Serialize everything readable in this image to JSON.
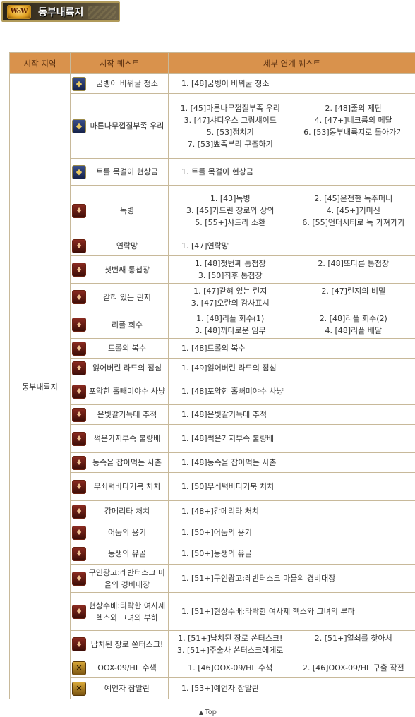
{
  "header": {
    "logo_text": "WoW",
    "title": "동부내륙지"
  },
  "table": {
    "headers": [
      "시작 지역",
      "시작 퀘스트",
      "세부 연계 퀘스트"
    ],
    "region": "동부내륙지",
    "rows": [
      {
        "start": "굼벵이 바위굴 청소",
        "icon": "alliance",
        "height": 28,
        "single": true,
        "details": [
          "1. [48]굼벵이 바위굴 청소"
        ]
      },
      {
        "start": "마른나무껍질부족 우리",
        "icon": "alliance",
        "height": 92,
        "single": false,
        "details": [
          "1. [45]마른나무껍질부족 우리",
          "2. [48]줄의 제단",
          "3. [47]샤디우스 그림섀이드",
          "4. [47+]네크룸의 메달",
          "5. [53]점치기",
          "6. [53]동부내륙지로 돌아가기",
          "7. [53]뾰족부리 구출하기",
          ""
        ]
      },
      {
        "start": "트롤 목걸이 현상금",
        "icon": "alliance",
        "height": 38,
        "single": true,
        "details": [
          "1. 트롤 목걸이 현상금"
        ]
      },
      {
        "start": "독병",
        "icon": "horde",
        "height": 72,
        "single": false,
        "details": [
          "1. [43]독병",
          "2. [45]온전한 독주머니",
          "3. [45]가드린 장로와 상의",
          "4. [45+]거미신",
          "5. [55+]샤드라 소환",
          "6. [55]언더시티로 독 가져가기"
        ]
      },
      {
        "start": "연락망",
        "icon": "horde",
        "height": 28,
        "single": true,
        "details": [
          "1. [47]연락망"
        ]
      },
      {
        "start": "첫번째 통첩장",
        "icon": "horde",
        "height": 36,
        "single": false,
        "details": [
          "1. [48]첫번째 통첩장",
          "2. [48]또다른 통첩장",
          "3. [50]최후 통첩장",
          ""
        ]
      },
      {
        "start": "갇혀 있는 린지",
        "icon": "horde",
        "height": 36,
        "single": false,
        "details": [
          "1. [47]갇혀 있는 린지",
          "2. [47]린지의 비밀",
          "3. [47]오란의 감사표시",
          ""
        ]
      },
      {
        "start": "리플 회수",
        "icon": "horde",
        "height": 36,
        "single": false,
        "details": [
          "1. [48]리플 회수(1)",
          "2. [48]리플 회수(2)",
          "3. [48]까다로운 임무",
          "4. [48]리플 배달"
        ]
      },
      {
        "start": "트롤의 복수",
        "icon": "horde",
        "height": 28,
        "single": true,
        "details": [
          "1. [48]트롤의 복수"
        ]
      },
      {
        "start": "잃어버린 라드의 점심",
        "icon": "horde",
        "height": 28,
        "single": true,
        "details": [
          "1. [49]잃어버린 라드의 점심"
        ]
      },
      {
        "start": "포악한 홀빼미야수 사냥",
        "icon": "horde",
        "height": 38,
        "single": true,
        "details": [
          "1. [48]포악한 홀빼미야수 사냥"
        ]
      },
      {
        "start": "은빛갈기늑대 추적",
        "icon": "horde",
        "height": 28,
        "single": true,
        "details": [
          "1. [48]은빛갈기늑대 추적"
        ]
      },
      {
        "start": "썩은가지부족 불량배",
        "icon": "horde",
        "height": 40,
        "single": true,
        "details": [
          "1. [48]썩은가지부족 불량배"
        ]
      },
      {
        "start": "동족을 잡아먹는 사촌",
        "icon": "horde",
        "height": 28,
        "single": true,
        "details": [
          "1. [48]동족을 잡아먹는 사촌"
        ]
      },
      {
        "start": "무쇠턱바다거북 처치",
        "icon": "horde",
        "height": 40,
        "single": true,
        "details": [
          "1. [50]무쇠턱바다거북 처치"
        ]
      },
      {
        "start": "감메리타 처치",
        "icon": "horde",
        "height": 30,
        "single": true,
        "details": [
          "1. [48+]감메리타 처치"
        ]
      },
      {
        "start": "어둠의 용기",
        "icon": "horde",
        "height": 30,
        "single": true,
        "details": [
          "1. [50+]어둠의 용기"
        ]
      },
      {
        "start": "동생의 유골",
        "icon": "horde",
        "height": 30,
        "single": true,
        "details": [
          "1. [50+]동생의 유골"
        ]
      },
      {
        "start": "구인광고:레반터스크 마을의 경비대장",
        "icon": "horde",
        "height": 40,
        "single": true,
        "details": [
          "1. [51+]구인광고:레반터스크 마을의 경비대장"
        ]
      },
      {
        "start": "현상수배:타락한 여사제 헥스와 그녀의 부하",
        "icon": "horde",
        "height": 54,
        "single": true,
        "details": [
          "1. [51+]현상수배:타락한 여사제 헥스와 그녀의 부하"
        ]
      },
      {
        "start": "납치된 장로 쏜터스크!",
        "icon": "horde",
        "height": 38,
        "single": false,
        "details": [
          "1. [51+]납치된 장로 쏜터스크!",
          "2. [51+]열쇠를 찾아서",
          "3. [51+]주술사 쏜터스크에게로",
          ""
        ]
      },
      {
        "start": "OOX-09/HL 수색",
        "icon": "neutral",
        "height": 28,
        "single": false,
        "details": [
          "1. [46]OOX-09/HL 수색",
          "2. [46]OOX-09/HL 구출 작전"
        ]
      },
      {
        "start": "예언자 잠말란",
        "icon": "neutral",
        "height": 30,
        "single": true,
        "details": [
          "1. [53+]예언자 잠말란"
        ]
      }
    ]
  },
  "footer": {
    "top_label": "Top"
  },
  "colors": {
    "header_bg": "#d9924c",
    "border": "#c8b99a"
  }
}
